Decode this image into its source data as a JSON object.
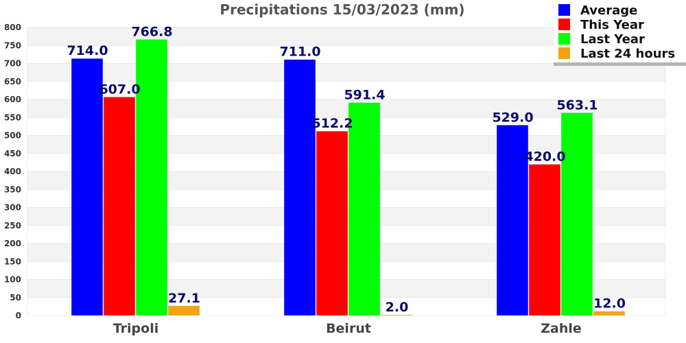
{
  "chart_data": {
    "type": "bar",
    "title": "Precipitations 15/03/2023 (mm)",
    "categories": [
      "Tripoli",
      "Beirut",
      "Zahle"
    ],
    "series": [
      {
        "name": "Average",
        "color": "#0000ff",
        "values": [
          714.0,
          711.0,
          529.0
        ],
        "labels": [
          "714.0",
          "711.0",
          "529.0"
        ]
      },
      {
        "name": "This Year",
        "color": "#ff0000",
        "values": [
          607.0,
          512.2,
          420.0
        ],
        "labels": [
          "607.0",
          "512.2",
          "420.0"
        ]
      },
      {
        "name": "Last Year",
        "color": "#00ff00",
        "values": [
          766.8,
          591.4,
          563.1
        ],
        "labels": [
          "766.8",
          "591.4",
          "563.1"
        ]
      },
      {
        "name": "Last 24 hours",
        "color": "#f5a30f",
        "values": [
          27.1,
          2.0,
          12.0
        ],
        "labels": [
          "27.1",
          "2.0",
          "12.0"
        ]
      }
    ],
    "ylim": [
      0,
      800
    ],
    "yticks": [
      "0",
      "50",
      "100",
      "150",
      "200",
      "250",
      "300",
      "350",
      "400",
      "450",
      "500",
      "550",
      "600",
      "650",
      "700",
      "750",
      "800"
    ],
    "grid": true,
    "legend_position": "top-right"
  }
}
